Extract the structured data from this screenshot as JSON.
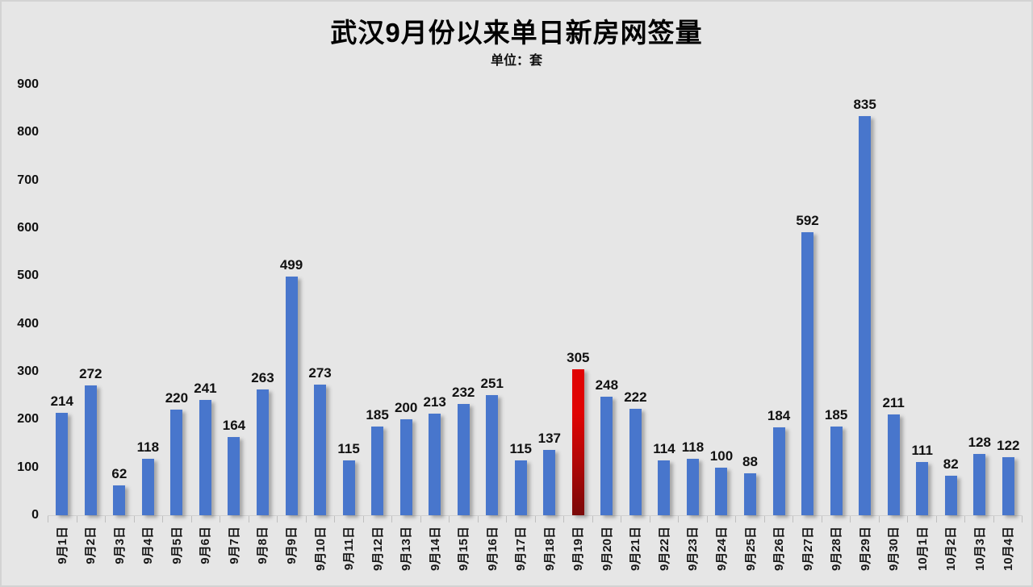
{
  "chart_data": {
    "type": "bar",
    "title": "武汉9月份以来单日新房网签量",
    "subtitle": "单位：套",
    "categories": [
      "9月1日",
      "9月2日",
      "9月3日",
      "9月4日",
      "9月5日",
      "9月6日",
      "9月7日",
      "9月8日",
      "9月9日",
      "9月10日",
      "9月11日",
      "9月12日",
      "9月13日",
      "9月14日",
      "9月15日",
      "9月16日",
      "9月17日",
      "9月18日",
      "9月19日",
      "9月20日",
      "9月21日",
      "9月22日",
      "9月23日",
      "9月24日",
      "9月25日",
      "9月26日",
      "9月27日",
      "9月28日",
      "9月29日",
      "9月30日",
      "10月1日",
      "10月2日",
      "10月3日",
      "10月4日"
    ],
    "values": [
      214,
      272,
      62,
      118,
      220,
      241,
      164,
      263,
      499,
      273,
      115,
      185,
      200,
      213,
      232,
      251,
      115,
      137,
      305,
      248,
      222,
      114,
      118,
      100,
      88,
      184,
      592,
      185,
      835,
      211,
      111,
      82,
      128,
      122
    ],
    "highlight_index": 18,
    "highlight_category": "9月19日",
    "highlight_value": 305,
    "xlabel": "",
    "ylabel": "",
    "ylim": [
      0,
      900
    ],
    "yticks": [
      0,
      100,
      200,
      300,
      400,
      500,
      600,
      700,
      800,
      900
    ],
    "grid": false,
    "legend": false,
    "data_labels": true,
    "colors": {
      "bar": "#4876cc",
      "highlight_top": "#e00303",
      "highlight_bottom": "#7a0909",
      "background": "#e6e6e6",
      "frame": "#d3d3d3",
      "axis_line": "#d0d0d0",
      "tick": "#bfbfbf",
      "text": "#111111"
    }
  }
}
